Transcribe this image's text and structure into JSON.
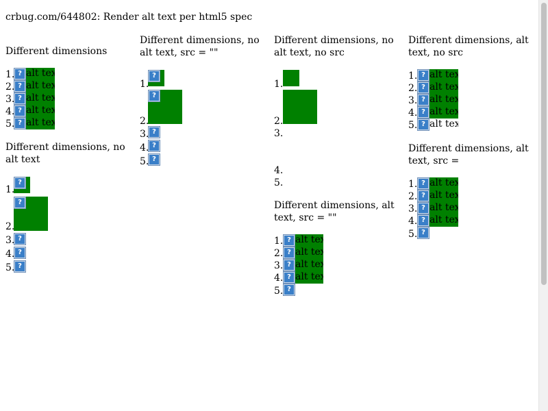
{
  "page": {
    "title": "crbug.com/644802: Render alt text per html5 spec"
  },
  "columns": [
    {
      "sections": [
        {
          "title": "Different dimensions",
          "items": [
            {
              "n": "1.",
              "alt": "alt text",
              "icon": "broken-image-icon"
            },
            {
              "n": "2.",
              "alt": "alt text",
              "icon": "broken-image-icon"
            },
            {
              "n": "3.",
              "alt": "alt text",
              "icon": "broken-image-icon"
            },
            {
              "n": "4.",
              "alt": "alt text",
              "icon": "broken-image-icon"
            },
            {
              "n": "5.",
              "alt": "alt text",
              "icon": "broken-image-icon"
            }
          ]
        },
        {
          "title": "Different dimensions, no alt text",
          "items": [
            {
              "n": "1.",
              "alt": "",
              "icon": "broken-image-icon"
            },
            {
              "n": "2.",
              "alt": "",
              "icon": "broken-image-icon"
            },
            {
              "n": "3.",
              "alt": "",
              "icon": "broken-image-icon"
            },
            {
              "n": "4.",
              "alt": "",
              "icon": "broken-image-icon"
            },
            {
              "n": "5.",
              "alt": "",
              "icon": "broken-image-icon"
            }
          ]
        }
      ]
    },
    {
      "sections": [
        {
          "title": "Different dimensions, no alt text, src = \"\"",
          "items": [
            {
              "n": "1.",
              "alt": "",
              "icon": "broken-image-icon"
            },
            {
              "n": "2.",
              "alt": "",
              "icon": "broken-image-icon"
            },
            {
              "n": "3.",
              "alt": "",
              "icon": "broken-image-icon"
            },
            {
              "n": "4.",
              "alt": "",
              "icon": "broken-image-icon"
            },
            {
              "n": "5.",
              "alt": "",
              "icon": "broken-image-icon"
            }
          ]
        }
      ]
    },
    {
      "sections": [
        {
          "title": "Different dimensions, no alt text, no src",
          "items": [
            {
              "n": "1.",
              "alt": ""
            },
            {
              "n": "2.",
              "alt": ""
            },
            {
              "n": "3.",
              "alt": ""
            },
            {
              "n": "4.",
              "alt": ""
            },
            {
              "n": "5.",
              "alt": ""
            }
          ]
        },
        {
          "title": "Different dimensions, alt text, src = \"\"",
          "items": [
            {
              "n": "1.",
              "alt": "alt text",
              "icon": "broken-image-icon"
            },
            {
              "n": "2.",
              "alt": "alt text",
              "icon": "broken-image-icon"
            },
            {
              "n": "3.",
              "alt": "alt text",
              "icon": "broken-image-icon"
            },
            {
              "n": "4.",
              "alt": "alt text",
              "icon": "broken-image-icon"
            },
            {
              "n": "5.",
              "alt": "",
              "icon": "broken-image-icon"
            }
          ]
        }
      ]
    },
    {
      "sections": [
        {
          "title": "Different dimensions, alt text, no src",
          "items": [
            {
              "n": "1.",
              "alt": "alt text",
              "icon": "broken-image-icon"
            },
            {
              "n": "2.",
              "alt": "alt text",
              "icon": "broken-image-icon"
            },
            {
              "n": "3.",
              "alt": "alt text",
              "icon": "broken-image-icon"
            },
            {
              "n": "4.",
              "alt": "alt text",
              "icon": "broken-image-icon"
            },
            {
              "n": "5.",
              "alt": "alt text",
              "icon": "broken-image-icon"
            }
          ]
        },
        {
          "title": "Different dimensions, alt text, src =",
          "items": [
            {
              "n": "1.",
              "alt": "alt text",
              "icon": "broken-image-icon"
            },
            {
              "n": "2.",
              "alt": "alt text",
              "icon": "broken-image-icon"
            },
            {
              "n": "3.",
              "alt": "alt text",
              "icon": "broken-image-icon"
            },
            {
              "n": "4.",
              "alt": "alt text",
              "icon": "broken-image-icon"
            },
            {
              "n": "5.",
              "alt": "",
              "icon": "broken-image-icon"
            }
          ]
        }
      ]
    }
  ],
  "icon_glyph": "?",
  "colors": {
    "image_background": "#008000",
    "icon_background": "#3a7fc8"
  }
}
